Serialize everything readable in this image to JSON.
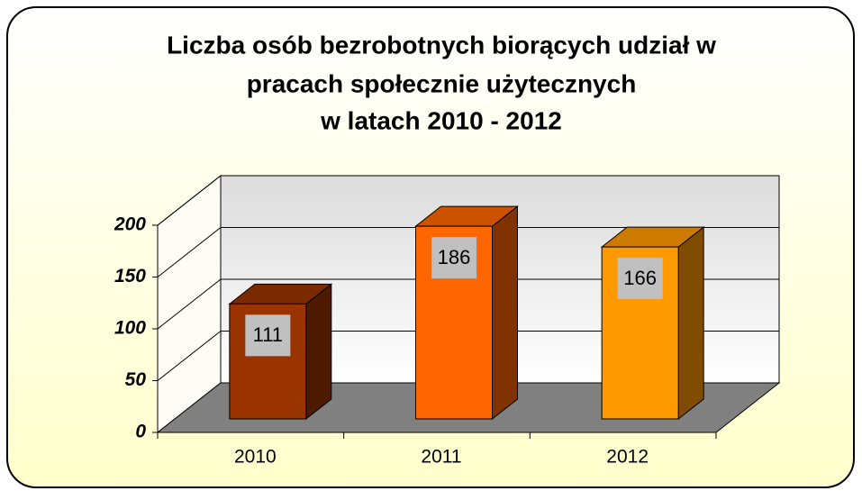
{
  "chart_data": {
    "type": "bar3d",
    "title": [
      "Liczba osób bezrobotnych biorących udział w",
      "pracach społecznie użytecznych",
      "w latach 2010 - 2012"
    ],
    "categories": [
      "2010",
      "2011",
      "2012"
    ],
    "values": [
      111,
      186,
      166
    ],
    "colors": [
      "#993300",
      "#ff6600",
      "#ff9900"
    ],
    "ylim": [
      0,
      200
    ],
    "yticks": [
      0,
      50,
      100,
      150,
      200
    ],
    "grid": true
  }
}
